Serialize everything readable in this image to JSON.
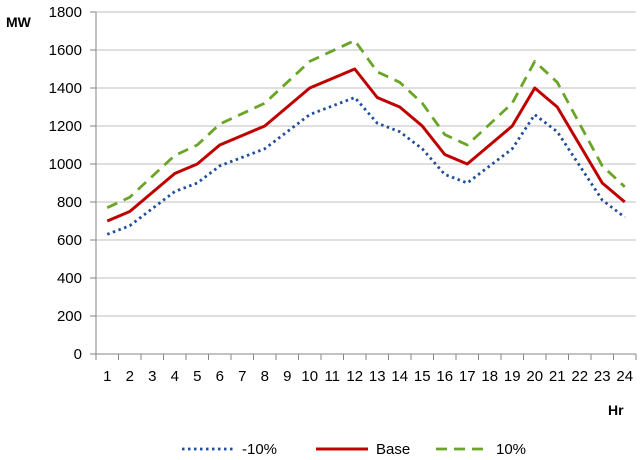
{
  "chart_data": {
    "type": "line",
    "title": "",
    "xlabel": "Hr",
    "ylabel": "MW",
    "ylim": [
      0,
      1800
    ],
    "yticks": [
      0,
      200,
      400,
      600,
      800,
      1000,
      1200,
      1400,
      1600,
      1800
    ],
    "grid": "horizontal",
    "legend_position": "bottom",
    "x": [
      1,
      2,
      3,
      4,
      5,
      6,
      7,
      8,
      9,
      10,
      11,
      12,
      13,
      14,
      15,
      16,
      17,
      18,
      19,
      20,
      21,
      22,
      23,
      24
    ],
    "series": [
      {
        "name": "-10%",
        "color": "#1f4e9c",
        "dash": "dotted",
        "values": [
          630,
          675,
          765,
          855,
          900,
          990,
          1035,
          1080,
          1170,
          1260,
          1305,
          1350,
          1215,
          1170,
          1080,
          945,
          900,
          990,
          1080,
          1260,
          1170,
          990,
          810,
          720
        ]
      },
      {
        "name": "Base",
        "color": "#c00000",
        "dash": "solid",
        "values": [
          700,
          750,
          850,
          950,
          1000,
          1100,
          1150,
          1200,
          1300,
          1400,
          1450,
          1500,
          1350,
          1300,
          1200,
          1050,
          1000,
          1100,
          1200,
          1400,
          1300,
          1100,
          900,
          800
        ]
      },
      {
        "name": "10%",
        "color": "#6aa527",
        "dash": "dashed",
        "values": [
          770,
          825,
          935,
          1045,
          1100,
          1210,
          1265,
          1320,
          1430,
          1540,
          1595,
          1650,
          1485,
          1430,
          1320,
          1155,
          1100,
          1210,
          1320,
          1540,
          1430,
          1210,
          990,
          880
        ]
      }
    ]
  }
}
